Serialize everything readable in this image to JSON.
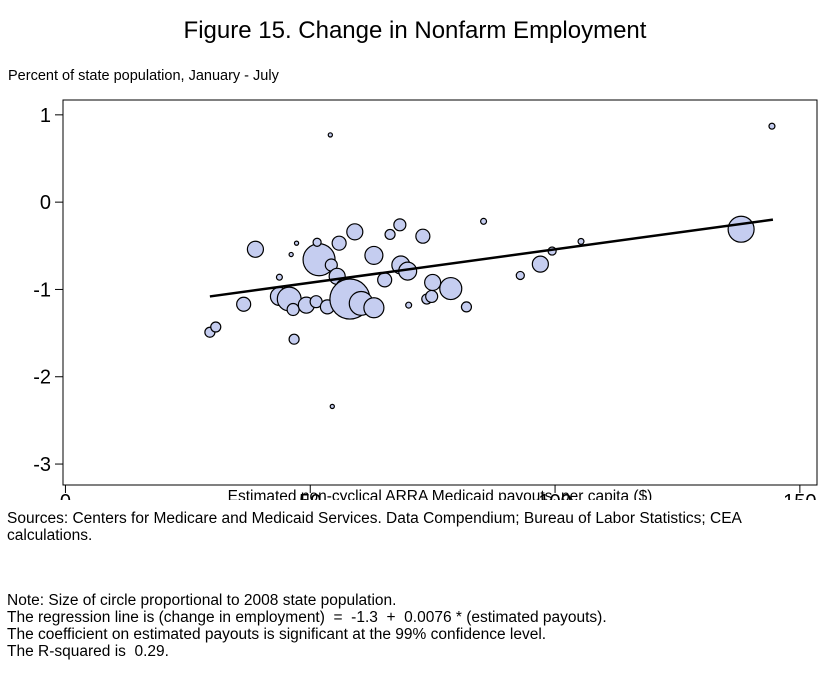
{
  "chart_data": {
    "type": "scatter",
    "title": "Figure 15. Change in Nonfarm Employment",
    "y_label": "Percent of state population, January - July",
    "x_label": "Estimated non-cyclical ARRA Medicaid payouts, per capita ($)",
    "xlim": [
      -0.5,
      153.5
    ],
    "ylim": [
      -3.24,
      1.17
    ],
    "xticks": [
      0,
      50,
      100,
      150
    ],
    "yticks": [
      1,
      0,
      -1,
      -2,
      -3
    ],
    "series": [
      {
        "color": "#c5cdf0",
        "x": [
          29.5,
          30.7,
          36.4,
          38.8,
          43.7,
          43.7,
          45.7,
          46.5,
          46.7,
          47.2,
          46.1,
          49.2,
          51.2,
          51.8,
          51.4,
          54.1,
          54.5,
          53.5,
          54.3,
          55.5,
          55.9,
          57.1,
          58.1,
          59.1,
          60.4,
          63,
          63,
          65.2,
          66.3,
          68.3,
          68.5,
          69.9,
          70.1,
          73,
          73.8,
          74.8,
          75,
          78.7,
          81.9,
          85.4,
          92.9,
          97,
          99.4,
          105.3,
          138,
          144.3
        ],
        "values": [
          -1.49,
          -1.43,
          -1.17,
          -0.54,
          -0.86,
          -1.08,
          -1.11,
          -1.23,
          -1.57,
          -0.47,
          -0.6,
          -1.18,
          -1.14,
          -0.66,
          -0.46,
          0.77,
          -2.34,
          -1.2,
          -0.72,
          -0.85,
          -0.47,
          -0.98,
          -1.11,
          -0.34,
          -1.16,
          -1.21,
          -0.61,
          -0.89,
          -0.37,
          -0.26,
          -0.72,
          -0.79,
          -1.18,
          -0.39,
          -1.11,
          -1.08,
          -0.92,
          -0.99,
          -1.2,
          -0.22,
          -0.84,
          -0.71,
          -0.56,
          -0.45,
          -0.31,
          0.87
        ],
        "sizes": [
          2.3,
          2.3,
          4.5,
          5.9,
          0.8,
          7.4,
          13,
          3.3,
          2.3,
          0.4,
          0.4,
          5.9,
          3.3,
          23.5,
          1.5,
          0.4,
          0.4,
          4.5,
          3.3,
          5.9,
          4.5,
          7.4,
          36.8,
          5.9,
          13,
          9.2,
          7.4,
          4.5,
          2.3,
          3.3,
          7.4,
          7.4,
          0.8,
          4.5,
          2.3,
          3.3,
          5.9,
          11.1,
          2.3,
          0.8,
          1.5,
          5.9,
          1.5,
          0.8,
          15.5,
          0.8
        ]
      }
    ],
    "regression": {
      "color": "#000000",
      "x": [
        29.5,
        144.5
      ],
      "values": [
        -1.08,
        -0.2
      ]
    },
    "sources": "Sources: Centers for Medicare and Medicaid Services. Data Compendium; Bureau of Labor Statistics; CEA calculations.",
    "notes": [
      "Note: Size of circle proportional to 2008 state population.",
      "The regression line is (change in employment)  =  -1.3  +  0.0076 * (estimated payouts).",
      "The coefficient on estimated payouts is significant at the 99% confidence level.",
      "The R-squared is  0.29."
    ]
  }
}
